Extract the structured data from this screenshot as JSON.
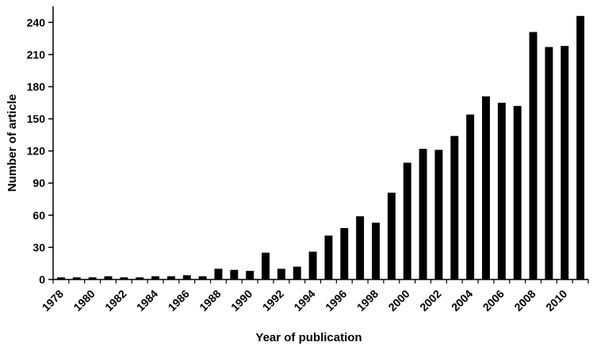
{
  "chart_data": {
    "type": "bar",
    "title": "",
    "xlabel": "Year of publication",
    "ylabel": "Number of article",
    "ylim": [
      0,
      255
    ],
    "yticks": [
      0,
      30,
      60,
      90,
      120,
      150,
      180,
      210,
      240
    ],
    "categories": [
      "1978",
      "1979",
      "1980",
      "1981",
      "1982",
      "1983",
      "1984",
      "1985",
      "1986",
      "1987",
      "1988",
      "1989",
      "1990",
      "1991",
      "1992",
      "1993",
      "1994",
      "1995",
      "1996",
      "1997",
      "1998",
      "1999",
      "2000",
      "2001",
      "2002",
      "2003",
      "2004",
      "2005",
      "2006",
      "2007",
      "2008",
      "2009",
      "2010",
      "2011"
    ],
    "x_tick_labels": [
      "1978",
      "1980",
      "1982",
      "1984",
      "1986",
      "1988",
      "1990",
      "1992",
      "1994",
      "1996",
      "1998",
      "2000",
      "2002",
      "2004",
      "2006",
      "2008",
      "2010"
    ],
    "values": [
      2,
      2,
      2,
      3,
      2,
      2,
      3,
      3,
      4,
      3,
      10,
      9,
      8,
      25,
      10,
      12,
      26,
      41,
      48,
      59,
      53,
      81,
      109,
      122,
      121,
      134,
      154,
      171,
      165,
      162,
      231,
      217,
      218,
      246
    ],
    "grid": false,
    "legend": "none",
    "bar_color": "#000000"
  }
}
